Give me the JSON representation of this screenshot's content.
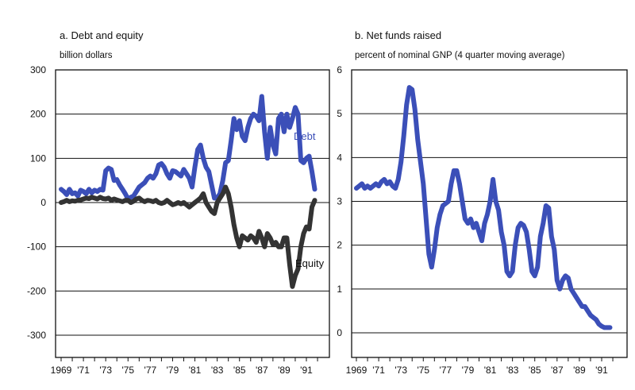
{
  "chart_data": [
    {
      "type": "line",
      "title": "a. Debt and equity",
      "ylabel": "billion dollars",
      "xlabel": "",
      "xlim": [
        1969,
        1992.5
      ],
      "ylim": [
        -300,
        300
      ],
      "yticks": [
        300,
        200,
        100,
        0,
        -100,
        -200,
        -300
      ],
      "yticklabels": [
        "300",
        "200",
        "100",
        "0",
        "-100",
        "-200",
        "-300"
      ],
      "xticks": [
        1969,
        1971,
        1973,
        1975,
        1977,
        1979,
        1981,
        1983,
        1985,
        1987,
        1989,
        1991
      ],
      "xticklabels": [
        "1969",
        "'71",
        "'73",
        "'75",
        "'77",
        "'79",
        "'81",
        "'83",
        "'85",
        "'87",
        "'89",
        "'91"
      ],
      "grid": "horizontal",
      "series": [
        {
          "name": "Debt",
          "color": "#3b4fb8",
          "x": [
            1969.0,
            1969.25,
            1969.5,
            1969.75,
            1970.0,
            1970.25,
            1970.5,
            1970.75,
            1971.0,
            1971.25,
            1971.5,
            1971.75,
            1972.0,
            1972.25,
            1972.5,
            1972.75,
            1973.0,
            1973.25,
            1973.5,
            1973.75,
            1974.0,
            1974.25,
            1974.5,
            1974.75,
            1975.0,
            1975.25,
            1975.5,
            1975.75,
            1976.0,
            1976.25,
            1976.5,
            1976.75,
            1977.0,
            1977.25,
            1977.5,
            1977.75,
            1978.0,
            1978.25,
            1978.5,
            1978.75,
            1979.0,
            1979.25,
            1979.5,
            1979.75,
            1980.0,
            1980.25,
            1980.5,
            1980.75,
            1981.0,
            1981.25,
            1981.5,
            1981.75,
            1982.0,
            1982.25,
            1982.5,
            1982.75,
            1983.0,
            1983.25,
            1983.5,
            1983.75,
            1984.0,
            1984.25,
            1984.5,
            1984.75,
            1985.0,
            1985.25,
            1985.5,
            1985.75,
            1986.0,
            1986.25,
            1986.5,
            1986.75,
            1987.0,
            1987.25,
            1987.5,
            1987.75,
            1988.0,
            1988.25,
            1988.5,
            1988.75,
            1989.0,
            1989.25,
            1989.5,
            1989.75,
            1990.0,
            1990.25,
            1990.5,
            1990.75,
            1991.0,
            1991.25,
            1991.5,
            1991.75
          ],
          "values": [
            30,
            25,
            18,
            30,
            20,
            22,
            15,
            28,
            25,
            20,
            30,
            22,
            28,
            25,
            30,
            28,
            72,
            78,
            75,
            50,
            52,
            40,
            30,
            20,
            8,
            12,
            15,
            25,
            35,
            40,
            45,
            55,
            60,
            55,
            65,
            85,
            88,
            80,
            65,
            55,
            72,
            70,
            65,
            60,
            75,
            65,
            55,
            35,
            80,
            120,
            130,
            100,
            80,
            70,
            40,
            10,
            10,
            20,
            50,
            90,
            95,
            140,
            190,
            165,
            185,
            150,
            140,
            170,
            190,
            200,
            195,
            185,
            240,
            160,
            100,
            170,
            130,
            110,
            190,
            200,
            160,
            200,
            170,
            190,
            215,
            200,
            95,
            90,
            100,
            105,
            70,
            30
          ]
        },
        {
          "name": "Equity",
          "color": "#333333",
          "x": [
            1969.0,
            1969.25,
            1969.5,
            1969.75,
            1970.0,
            1970.25,
            1970.5,
            1970.75,
            1971.0,
            1971.25,
            1971.5,
            1971.75,
            1972.0,
            1972.25,
            1972.5,
            1972.75,
            1973.0,
            1973.25,
            1973.5,
            1973.75,
            1974.0,
            1974.25,
            1974.5,
            1974.75,
            1975.0,
            1975.25,
            1975.5,
            1975.75,
            1976.0,
            1976.25,
            1976.5,
            1976.75,
            1977.0,
            1977.25,
            1977.5,
            1977.75,
            1978.0,
            1978.25,
            1978.5,
            1978.75,
            1979.0,
            1979.25,
            1979.5,
            1979.75,
            1980.0,
            1980.25,
            1980.5,
            1980.75,
            1981.0,
            1981.25,
            1981.5,
            1981.75,
            1982.0,
            1982.25,
            1982.5,
            1982.75,
            1983.0,
            1983.25,
            1983.5,
            1983.75,
            1984.0,
            1984.25,
            1984.5,
            1984.75,
            1985.0,
            1985.25,
            1985.5,
            1985.75,
            1986.0,
            1986.25,
            1986.5,
            1986.75,
            1987.0,
            1987.25,
            1987.5,
            1987.75,
            1988.0,
            1988.25,
            1988.5,
            1988.75,
            1989.0,
            1989.25,
            1989.5,
            1989.75,
            1990.0,
            1990.25,
            1990.5,
            1990.75,
            1991.0,
            1991.25,
            1991.5,
            1991.75
          ],
          "values": [
            0,
            2,
            5,
            2,
            4,
            3,
            5,
            6,
            8,
            10,
            9,
            12,
            10,
            8,
            12,
            9,
            8,
            10,
            5,
            8,
            6,
            4,
            2,
            5,
            5,
            0,
            3,
            8,
            10,
            5,
            2,
            5,
            4,
            2,
            5,
            0,
            -2,
            0,
            5,
            0,
            -5,
            -3,
            0,
            -3,
            0,
            -5,
            -10,
            -5,
            0,
            5,
            10,
            20,
            0,
            -10,
            -20,
            -25,
            0,
            10,
            20,
            35,
            20,
            -10,
            -50,
            -80,
            -100,
            -75,
            -80,
            -85,
            -75,
            -80,
            -90,
            -65,
            -80,
            -100,
            -70,
            -80,
            -95,
            -90,
            -100,
            -100,
            -80,
            -80,
            -140,
            -190,
            -165,
            -150,
            -100,
            -70,
            -55,
            -60,
            -10,
            5
          ]
        }
      ],
      "annotations": [
        "Debt",
        "Equity"
      ]
    },
    {
      "type": "line",
      "title": "b. Net funds raised",
      "ylabel": "percent of nominal GNP (4 quarter moving average)",
      "xlabel": "",
      "xlim": [
        1969,
        1992.5
      ],
      "ylim": [
        -0.6,
        6
      ],
      "yticks": [
        6,
        5,
        4,
        3,
        2,
        1,
        0
      ],
      "yticklabels": [
        "6",
        "5",
        "4",
        "3",
        "2",
        "1",
        "0"
      ],
      "xticks": [
        1969,
        1971,
        1973,
        1975,
        1977,
        1979,
        1981,
        1983,
        1985,
        1987,
        1989,
        1991
      ],
      "xticklabels": [
        "1969",
        "'71",
        "'73",
        "'75",
        "'77",
        "'79",
        "'81",
        "'83",
        "'85",
        "'87",
        "'89",
        "'91"
      ],
      "grid": "horizontal",
      "series": [
        {
          "name": "",
          "color": "#3b4fb8",
          "x": [
            1969.0,
            1969.25,
            1969.5,
            1969.75,
            1970.0,
            1970.25,
            1970.5,
            1970.75,
            1971.0,
            1971.25,
            1971.5,
            1971.75,
            1972.0,
            1972.25,
            1972.5,
            1972.75,
            1973.0,
            1973.25,
            1973.5,
            1973.75,
            1974.0,
            1974.25,
            1974.5,
            1974.75,
            1975.0,
            1975.25,
            1975.5,
            1975.75,
            1976.0,
            1976.25,
            1976.5,
            1976.75,
            1977.0,
            1977.25,
            1977.5,
            1977.75,
            1978.0,
            1978.25,
            1978.5,
            1978.75,
            1979.0,
            1979.25,
            1979.5,
            1979.75,
            1980.0,
            1980.25,
            1980.5,
            1980.75,
            1981.0,
            1981.25,
            1981.5,
            1981.75,
            1982.0,
            1982.25,
            1982.5,
            1982.75,
            1983.0,
            1983.25,
            1983.5,
            1983.75,
            1984.0,
            1984.25,
            1984.5,
            1984.75,
            1985.0,
            1985.25,
            1985.5,
            1985.75,
            1986.0,
            1986.25,
            1986.5,
            1986.75,
            1987.0,
            1987.25,
            1987.5,
            1987.75,
            1988.0,
            1988.25,
            1988.5,
            1988.75,
            1989.0,
            1989.25,
            1989.5,
            1989.75,
            1990.0,
            1990.25,
            1990.5,
            1990.75,
            1991.0,
            1991.25,
            1991.5,
            1991.75
          ],
          "values": [
            3.3,
            3.35,
            3.4,
            3.3,
            3.35,
            3.3,
            3.35,
            3.4,
            3.35,
            3.45,
            3.5,
            3.4,
            3.45,
            3.35,
            3.3,
            3.5,
            3.9,
            4.5,
            5.2,
            5.6,
            5.55,
            5.1,
            4.4,
            3.9,
            3.4,
            2.6,
            1.8,
            1.5,
            1.9,
            2.4,
            2.7,
            2.9,
            2.95,
            3.0,
            3.4,
            3.7,
            3.7,
            3.4,
            3.0,
            2.6,
            2.5,
            2.6,
            2.4,
            2.5,
            2.3,
            2.1,
            2.5,
            2.7,
            3.0,
            3.5,
            3.0,
            2.8,
            2.3,
            2.0,
            1.4,
            1.3,
            1.4,
            2.0,
            2.4,
            2.5,
            2.45,
            2.3,
            1.9,
            1.4,
            1.3,
            1.5,
            2.2,
            2.5,
            2.9,
            2.85,
            2.2,
            1.9,
            1.2,
            1.0,
            1.2,
            1.3,
            1.25,
            1.0,
            0.9,
            0.8,
            0.7,
            0.6,
            0.6,
            0.5,
            0.4,
            0.35,
            0.3,
            0.2,
            0.15,
            0.12,
            0.12,
            0.12
          ]
        }
      ]
    }
  ]
}
